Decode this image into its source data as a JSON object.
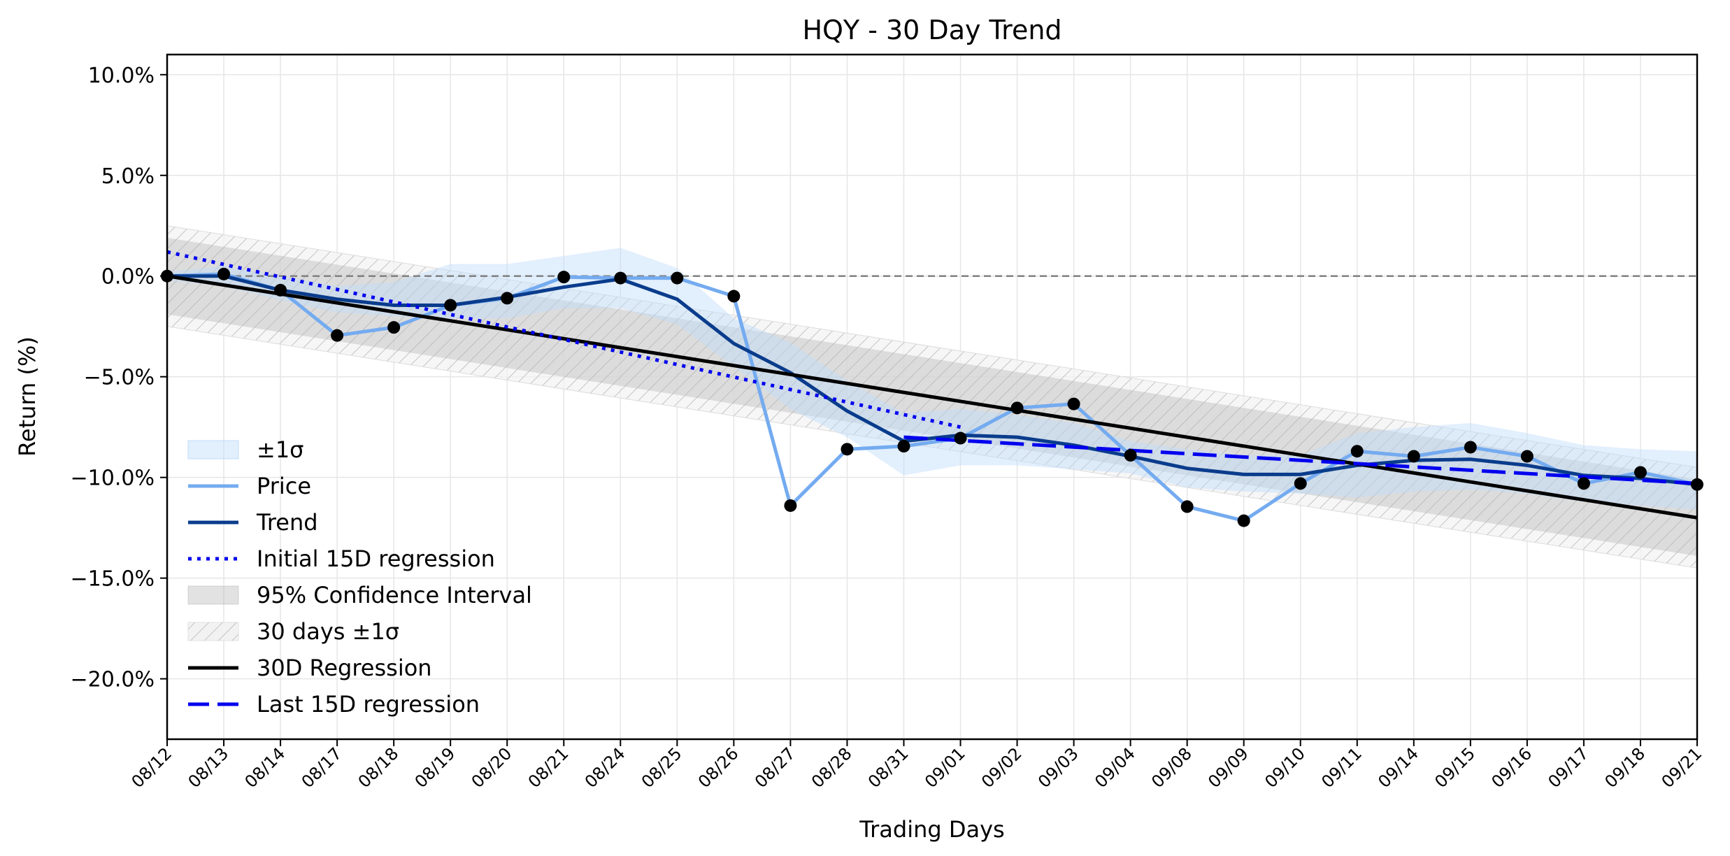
{
  "chart_data": {
    "type": "line",
    "title": "HQY - 30 Day Trend",
    "xlabel": "Trading Days",
    "ylabel": "Return (%)",
    "x": [
      "08/12",
      "08/13",
      "08/14",
      "08/17",
      "08/18",
      "08/19",
      "08/20",
      "08/21",
      "08/24",
      "08/25",
      "08/26",
      "08/27",
      "08/28",
      "08/31",
      "09/01",
      "09/02",
      "09/03",
      "09/04",
      "09/08",
      "09/09",
      "09/10",
      "09/11",
      "09/14",
      "09/15",
      "09/16",
      "09/17",
      "09/18",
      "09/21"
    ],
    "ylim": [
      -23,
      11
    ],
    "yticks": [
      10,
      5,
      0,
      -5,
      -10,
      -15,
      -20
    ],
    "ytick_labels": [
      "10.0%",
      "5.0%",
      "0.0%",
      "−5.0%",
      "−10.0%",
      "−15.0%",
      "−20.0%"
    ],
    "grid": true,
    "legend_position": "lower-left",
    "reference_line": {
      "y": 0,
      "style": "dashed",
      "color": "#808080"
    },
    "series": [
      {
        "name": "Price",
        "kind": "line+markers",
        "color": "#74abf0",
        "values": [
          0.0,
          0.1,
          -0.7,
          -2.95,
          -2.55,
          -1.45,
          -1.1,
          -0.05,
          -0.1,
          -0.1,
          -1.0,
          -11.4,
          -8.6,
          -8.45,
          -8.05,
          -6.55,
          -6.35,
          -8.9,
          -11.45,
          -12.15,
          -10.3,
          -8.7,
          -8.95,
          -8.5,
          -8.95,
          -10.3,
          -9.75,
          -10.35
        ]
      },
      {
        "name": "Trend",
        "kind": "line",
        "color": "#0a3c8c",
        "values": [
          0.0,
          0.0,
          -0.7,
          -1.15,
          -1.45,
          -1.45,
          -1.05,
          -0.55,
          -0.15,
          -1.15,
          -3.35,
          -4.8,
          -6.7,
          -8.2,
          -7.9,
          -8.0,
          -8.4,
          -8.95,
          -9.55,
          -9.85,
          -9.85,
          -9.4,
          -9.15,
          -9.1,
          -9.4,
          -9.9,
          -10.05,
          -10.35
        ]
      },
      {
        "name": "±1σ",
        "kind": "band",
        "color": "#cfe3fb",
        "upper": [
          0.2,
          0.5,
          0.0,
          -0.5,
          -0.3,
          0.6,
          0.6,
          1.0,
          1.4,
          0.4,
          -2.1,
          -3.3,
          -5.2,
          -6.8,
          -6.6,
          -6.9,
          -7.3,
          -8.2,
          -8.6,
          -8.9,
          -8.9,
          -7.8,
          -7.5,
          -7.3,
          -7.8,
          -8.4,
          -8.6,
          -8.7
        ],
        "lower": [
          -0.2,
          -0.5,
          -1.2,
          -1.8,
          -2.0,
          -2.1,
          -2.1,
          -1.6,
          -1.6,
          -2.4,
          -4.5,
          -6.6,
          -8.0,
          -9.9,
          -9.4,
          -9.4,
          -9.6,
          -9.8,
          -10.5,
          -10.7,
          -10.8,
          -11.0,
          -10.7,
          -10.6,
          -10.8,
          -11.2,
          -11.4,
          -11.6
        ]
      },
      {
        "name": "Initial 15D regression",
        "kind": "dotted",
        "color": "#0000ee",
        "x_range": [
          "08/12",
          "09/01"
        ],
        "y_range": [
          1.2,
          -7.5
        ]
      },
      {
        "name": "95% Confidence Interval",
        "kind": "band",
        "color": "#c8c8c8",
        "start": [
          1.9,
          -1.9
        ],
        "end": [
          -10.1,
          -13.9
        ]
      },
      {
        "name": "30 days ±1σ",
        "kind": "hatched-band",
        "color": "#d8d8d8",
        "start": [
          2.5,
          -2.5
        ],
        "end": [
          -9.5,
          -14.5
        ]
      },
      {
        "name": "30D Regression",
        "kind": "line",
        "color": "#000000",
        "x_range": [
          "08/12",
          "09/21"
        ],
        "y_range": [
          0.0,
          -12.0
        ]
      },
      {
        "name": "Last 15D regression",
        "kind": "dashed",
        "color": "#0000ee",
        "x_range": [
          "08/31",
          "09/21"
        ],
        "y_range": [
          -8.0,
          -10.3
        ]
      }
    ],
    "legend_order": [
      "±1σ",
      "Price",
      "Trend",
      "Initial 15D regression",
      "95% Confidence Interval",
      "30 days ±1σ",
      "30D Regression",
      "Last 15D regression"
    ]
  }
}
